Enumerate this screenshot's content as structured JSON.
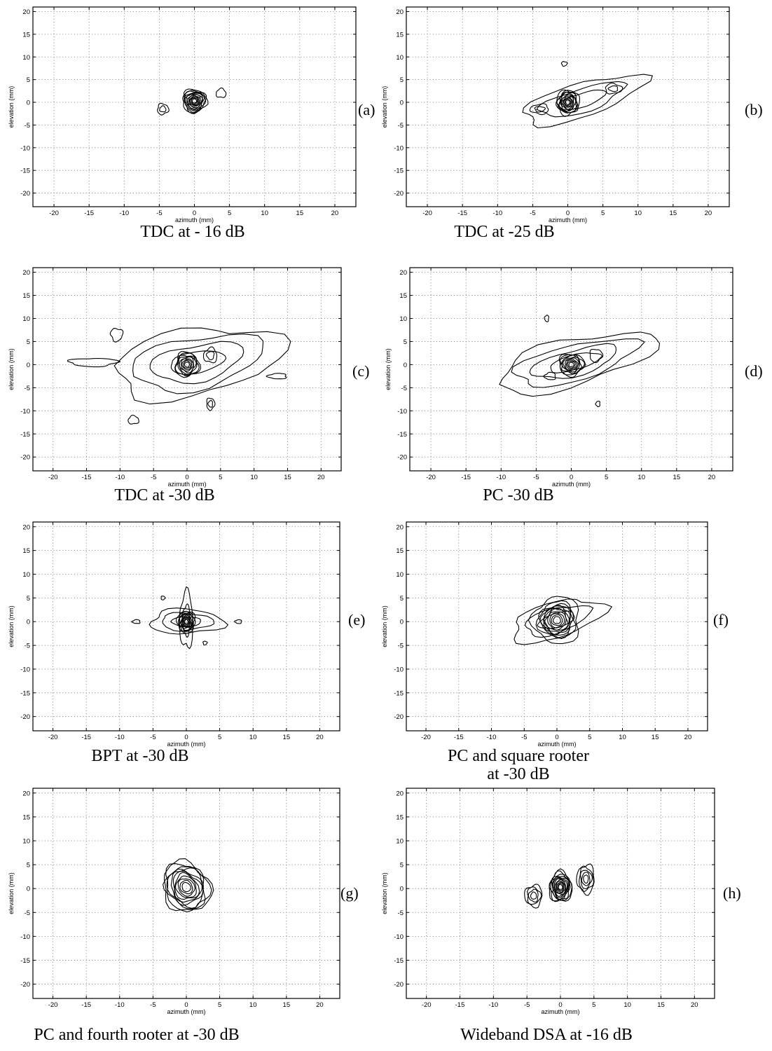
{
  "chart_data": [
    {
      "type": "contour",
      "panel": "(a)",
      "caption": "TDC at - 16 dB",
      "xlabel": "azimuth (mm)",
      "ylabel": "elevation (mm)",
      "xlim": [
        -23,
        23
      ],
      "ylim": [
        -23,
        21
      ],
      "xticks": [
        -20,
        -15,
        -10,
        -5,
        0,
        5,
        10,
        15,
        20
      ],
      "yticks": [
        20,
        15,
        10,
        5,
        0,
        -5,
        -10,
        -15,
        -20
      ],
      "grid": true,
      "blobs": [
        {
          "cx": 0,
          "cy": 0.3,
          "rx": 1.7,
          "ry": 2.6,
          "rot": 0,
          "n": 12
        },
        {
          "cx": 3.8,
          "cy": 2.0,
          "rx": 0.7,
          "ry": 1.0,
          "rot": 0,
          "n": 1
        },
        {
          "cx": -4.5,
          "cy": -1.5,
          "rx": 0.8,
          "ry": 1.2,
          "rot": 0,
          "n": 2
        }
      ]
    },
    {
      "type": "contour",
      "panel": "(b)",
      "caption": "TDC at -25 dB",
      "xlabel": "azimuth (mm)",
      "ylabel": "elevation (mm)",
      "xlim": [
        -23,
        23
      ],
      "ylim": [
        -23,
        21
      ],
      "xticks": [
        -20,
        -15,
        -10,
        -5,
        0,
        5,
        10,
        15,
        20
      ],
      "yticks": [
        20,
        15,
        10,
        5,
        0,
        -5,
        -10,
        -15,
        -20
      ],
      "grid": true,
      "blobs": [
        {
          "cx": 2.0,
          "cy": 0.5,
          "rx": 9.5,
          "ry": 3.5,
          "rot": 28,
          "n": 3
        },
        {
          "cx": 0,
          "cy": 0,
          "rx": 1.6,
          "ry": 2.7,
          "rot": 0,
          "n": 11
        },
        {
          "cx": 6.5,
          "cy": 3.0,
          "rx": 1.2,
          "ry": 1.1,
          "rot": 0,
          "n": 2
        },
        {
          "cx": -4.0,
          "cy": -1.5,
          "rx": 1.3,
          "ry": 1.1,
          "rot": 0,
          "n": 2
        },
        {
          "cx": -0.5,
          "cy": 8.5,
          "rx": 0.4,
          "ry": 0.5,
          "rot": 0,
          "n": 1
        }
      ]
    },
    {
      "type": "contour",
      "panel": "(c)",
      "caption": "TDC at -30 dB",
      "xlabel": "azimuth (mm)",
      "ylabel": "elevation (mm)",
      "xlim": [
        -23,
        23
      ],
      "ylim": [
        -23,
        21
      ],
      "xticks": [
        -20,
        -15,
        -10,
        -5,
        0,
        5,
        10,
        15,
        20
      ],
      "yticks": [
        20,
        15,
        10,
        5,
        0,
        -5,
        -10,
        -15,
        -20
      ],
      "grid": true,
      "blobs": [
        {
          "cx": 1.5,
          "cy": 0.5,
          "rx": 13.0,
          "ry": 7.0,
          "rot": 18,
          "n": 4
        },
        {
          "cx": 0,
          "cy": 0,
          "rx": 1.8,
          "ry": 2.7,
          "rot": 0,
          "n": 9
        },
        {
          "cx": -14.0,
          "cy": 0.5,
          "rx": 3.6,
          "ry": 0.9,
          "rot": 0,
          "n": 1
        },
        {
          "cx": -10.5,
          "cy": 6.5,
          "rx": 0.9,
          "ry": 1.4,
          "rot": 0,
          "n": 1
        },
        {
          "cx": 13.5,
          "cy": -2.5,
          "rx": 1.4,
          "ry": 0.6,
          "rot": 0,
          "n": 1
        },
        {
          "cx": -8.0,
          "cy": -12.0,
          "rx": 0.8,
          "ry": 0.9,
          "rot": 0,
          "n": 1
        },
        {
          "cx": 3.5,
          "cy": -8.5,
          "rx": 0.6,
          "ry": 1.3,
          "rot": 0,
          "n": 2
        },
        {
          "cx": 3.5,
          "cy": 2.0,
          "rx": 1.0,
          "ry": 1.6,
          "rot": 0,
          "n": 2
        }
      ]
    },
    {
      "type": "contour",
      "panel": "(d)",
      "caption": "PC -30 dB",
      "xlabel": "azimuth (mm)",
      "ylabel": "elevation (mm)",
      "xlim": [
        -23,
        23
      ],
      "ylim": [
        -23,
        21
      ],
      "xticks": [
        -20,
        -15,
        -10,
        -5,
        0,
        5,
        10,
        15,
        20
      ],
      "yticks": [
        20,
        15,
        10,
        5,
        0,
        -5,
        -10,
        -15,
        -20
      ],
      "grid": true,
      "blobs": [
        {
          "cx": 0.5,
          "cy": 0.5,
          "rx": 12.0,
          "ry": 4.8,
          "rot": 24,
          "n": 4
        },
        {
          "cx": 0,
          "cy": 0,
          "rx": 1.8,
          "ry": 2.4,
          "rot": 0,
          "n": 9
        },
        {
          "cx": -3.5,
          "cy": 10.0,
          "rx": 0.3,
          "ry": 0.7,
          "rot": 0,
          "n": 1
        },
        {
          "cx": 3.8,
          "cy": -8.5,
          "rx": 0.3,
          "ry": 0.6,
          "rot": 0,
          "n": 1
        },
        {
          "cx": -3.0,
          "cy": -2.5,
          "rx": 0.8,
          "ry": 0.8,
          "rot": 0,
          "n": 1
        },
        {
          "cx": 3.5,
          "cy": 2.0,
          "rx": 0.9,
          "ry": 1.4,
          "rot": 0,
          "n": 1
        }
      ]
    },
    {
      "type": "contour",
      "panel": "(e)",
      "caption": "BPT at -30 dB",
      "xlabel": "azimuth (mm)",
      "ylabel": "elevation (mm)",
      "xlim": [
        -23,
        23
      ],
      "ylim": [
        -23,
        21
      ],
      "xticks": [
        -20,
        -15,
        -10,
        -5,
        0,
        5,
        10,
        15,
        20
      ],
      "yticks": [
        20,
        15,
        10,
        5,
        0,
        -5,
        -10,
        -15,
        -20
      ],
      "grid": true,
      "blobs": [
        {
          "cx": 0,
          "cy": 0,
          "rx": 5.5,
          "ry": 2.6,
          "rot": 0,
          "n": 3
        },
        {
          "cx": 0,
          "cy": 0.3,
          "rx": 1.0,
          "ry": 6.0,
          "rot": 0,
          "n": 2
        },
        {
          "cx": 0,
          "cy": 0,
          "rx": 1.3,
          "ry": 2.3,
          "rot": 0,
          "n": 10
        },
        {
          "cx": -7.5,
          "cy": 0,
          "rx": 0.6,
          "ry": 0.4,
          "rot": 0,
          "n": 1
        },
        {
          "cx": 7.8,
          "cy": 0,
          "rx": 0.5,
          "ry": 0.4,
          "rot": 0,
          "n": 1
        },
        {
          "cx": -3.5,
          "cy": 5.0,
          "rx": 0.3,
          "ry": 0.4,
          "rot": 0,
          "n": 1
        },
        {
          "cx": 2.8,
          "cy": -4.5,
          "rx": 0.3,
          "ry": 0.4,
          "rot": 0,
          "n": 1
        }
      ]
    },
    {
      "type": "contour",
      "panel": "(f)",
      "caption": "PC and square rooter\nat -30 dB",
      "xlabel": "azimuth (mm)",
      "ylabel": "elevation (mm)",
      "xlim": [
        -23,
        23
      ],
      "ylim": [
        -23,
        21
      ],
      "xticks": [
        -20,
        -15,
        -10,
        -5,
        0,
        5,
        10,
        15,
        20
      ],
      "yticks": [
        20,
        15,
        10,
        5,
        0,
        -5,
        -10,
        -15,
        -20
      ],
      "grid": true,
      "blobs": [
        {
          "cx": 0,
          "cy": 0.3,
          "rx": 7.5,
          "ry": 3.6,
          "rot": 25,
          "n": 3
        },
        {
          "cx": 0,
          "cy": 0.3,
          "rx": 3.6,
          "ry": 5.0,
          "rot": 0,
          "n": 2
        },
        {
          "cx": 0,
          "cy": 0.3,
          "rx": 2.8,
          "ry": 3.8,
          "rot": 0,
          "n": 9
        }
      ]
    },
    {
      "type": "contour",
      "panel": "(g)",
      "caption": "PC and fourth  rooter at -30 dB",
      "xlabel": "azimuth (mm)",
      "ylabel": "elevation (mm)",
      "xlim": [
        -23,
        23
      ],
      "ylim": [
        -23,
        21
      ],
      "xticks": [
        -20,
        -15,
        -10,
        -5,
        0,
        5,
        10,
        15,
        20
      ],
      "yticks": [
        20,
        15,
        10,
        5,
        0,
        -5,
        -10,
        -15,
        -20
      ],
      "grid": true,
      "blobs": [
        {
          "cx": 0,
          "cy": 0.3,
          "rx": 3.5,
          "ry": 5.3,
          "rot": 10,
          "n": 11
        }
      ]
    },
    {
      "type": "contour",
      "panel": "(h)",
      "caption": "Wideband DSA at  -16 dB",
      "xlabel": "azimuth (mm)",
      "ylabel": "elevation (mm)",
      "xlim": [
        -23,
        23
      ],
      "ylim": [
        -23,
        21
      ],
      "xticks": [
        -20,
        -15,
        -10,
        -5,
        0,
        5,
        10,
        15,
        20
      ],
      "yticks": [
        20,
        15,
        10,
        5,
        0,
        -5,
        -10,
        -15,
        -20
      ],
      "grid": true,
      "blobs": [
        {
          "cx": 0,
          "cy": 0.3,
          "rx": 1.7,
          "ry": 3.2,
          "rot": 0,
          "n": 12
        },
        {
          "cx": -4.0,
          "cy": -1.5,
          "rx": 1.3,
          "ry": 2.3,
          "rot": 0,
          "n": 4
        },
        {
          "cx": 3.8,
          "cy": 2.0,
          "rx": 1.3,
          "ry": 3.0,
          "rot": 0,
          "n": 5
        }
      ]
    }
  ]
}
